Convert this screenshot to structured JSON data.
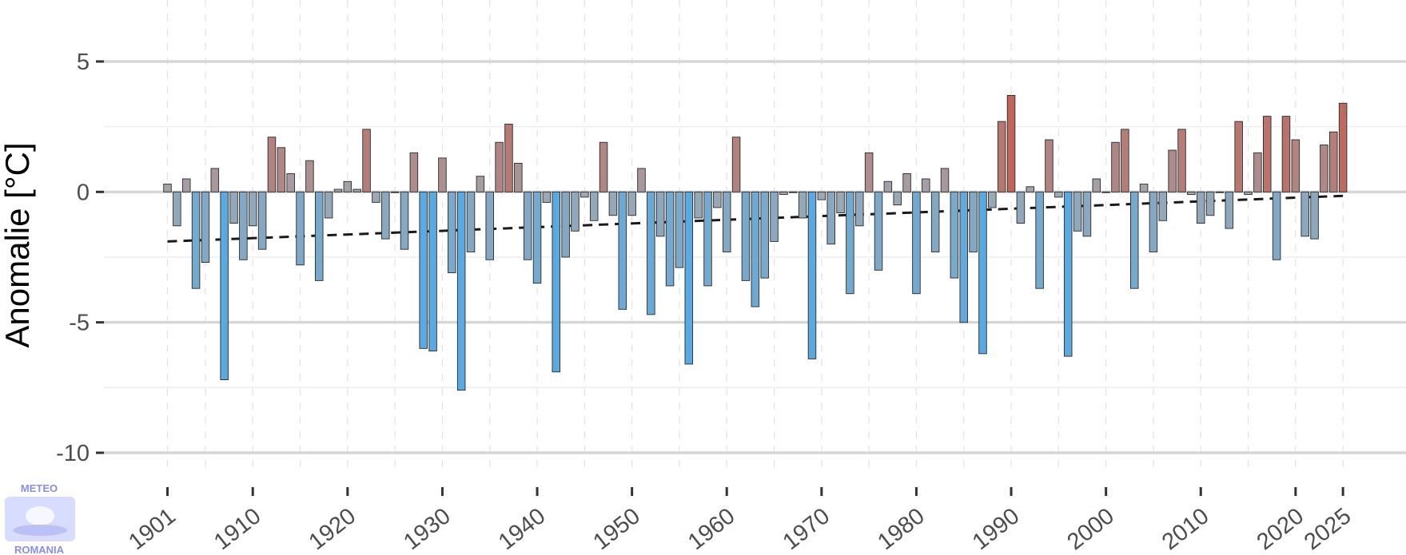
{
  "chart_data": {
    "type": "bar",
    "ylabel": "Anomalie [°C]",
    "xlabel": "",
    "xlim": [
      1898,
      2027
    ],
    "ylim": [
      -11.0,
      6.2
    ],
    "yticks": [
      5,
      0,
      -5,
      -10
    ],
    "ytick_labels": [
      "5",
      "0",
      "-5",
      "-10"
    ],
    "xticks": [
      1901,
      1910,
      1920,
      1930,
      1940,
      1950,
      1960,
      1970,
      1980,
      1990,
      2000,
      2010,
      2020,
      2025
    ],
    "xtick_labels": [
      "1901",
      "1910",
      "1920",
      "1930",
      "1940",
      "1950",
      "1960",
      "1970",
      "1980",
      "1990",
      "2000",
      "2010",
      "2020",
      "2025"
    ],
    "grid": "horizontal major lines, vertical dashed lines",
    "colors": {
      "warm": "#c0655a",
      "cold": "#5aa9e0",
      "neutral": "#a0a8b0"
    },
    "trend": {
      "style": "dashed",
      "start": [
        1901,
        -1.9
      ],
      "end": [
        2025,
        -0.15
      ]
    },
    "x": [
      1901,
      1902,
      1903,
      1904,
      1905,
      1906,
      1907,
      1908,
      1909,
      1910,
      1911,
      1912,
      1913,
      1914,
      1915,
      1916,
      1917,
      1918,
      1919,
      1920,
      1921,
      1922,
      1923,
      1924,
      1925,
      1926,
      1927,
      1928,
      1929,
      1930,
      1931,
      1932,
      1933,
      1934,
      1935,
      1936,
      1937,
      1938,
      1939,
      1940,
      1941,
      1942,
      1943,
      1944,
      1945,
      1946,
      1947,
      1948,
      1949,
      1950,
      1951,
      1952,
      1953,
      1954,
      1955,
      1956,
      1957,
      1958,
      1959,
      1960,
      1961,
      1962,
      1963,
      1964,
      1965,
      1966,
      1967,
      1968,
      1969,
      1970,
      1971,
      1972,
      1973,
      1974,
      1975,
      1976,
      1977,
      1978,
      1979,
      1980,
      1981,
      1982,
      1983,
      1984,
      1985,
      1986,
      1987,
      1988,
      1989,
      1990,
      1991,
      1992,
      1993,
      1994,
      1995,
      1996,
      1997,
      1998,
      1999,
      2000,
      2001,
      2002,
      2003,
      2004,
      2005,
      2006,
      2007,
      2008,
      2009,
      2010,
      2011,
      2012,
      2013,
      2014,
      2015,
      2016,
      2017,
      2018,
      2019,
      2020,
      2021,
      2022,
      2023,
      2024,
      2025
    ],
    "values": [
      0.3,
      -1.3,
      0.5,
      -3.7,
      -2.7,
      0.9,
      -7.2,
      -1.2,
      -2.6,
      -1.3,
      -2.2,
      2.1,
      1.7,
      0.7,
      -2.8,
      1.2,
      -3.4,
      -1.0,
      0.1,
      0.4,
      0.1,
      2.4,
      -0.4,
      -1.8,
      0.0,
      -2.2,
      1.5,
      -6.0,
      -6.1,
      1.3,
      -3.1,
      -7.6,
      -2.3,
      0.6,
      -2.6,
      1.9,
      2.6,
      1.1,
      -2.6,
      -3.5,
      -0.4,
      -6.9,
      -2.5,
      -1.5,
      -0.2,
      -1.1,
      1.9,
      -0.9,
      -4.5,
      -0.9,
      0.9,
      -4.7,
      -1.7,
      -3.6,
      -2.9,
      -6.6,
      -1.0,
      -3.6,
      -0.6,
      -2.3,
      2.1,
      -3.4,
      -4.4,
      -3.3,
      -1.9,
      -0.1,
      0.0,
      -1.0,
      -6.4,
      -0.3,
      -2.0,
      -0.8,
      -3.9,
      -1.3,
      1.5,
      -3.0,
      0.4,
      -0.5,
      0.7,
      -3.9,
      0.5,
      -2.3,
      0.9,
      -3.3,
      -5.0,
      -2.3,
      -6.2,
      -0.6,
      2.7,
      3.7,
      -1.2,
      0.2,
      -3.7,
      2.0,
      -0.2,
      -6.3,
      -1.5,
      -1.7,
      0.5,
      0.0,
      1.9,
      2.4,
      -3.7,
      0.3,
      -2.3,
      -1.1,
      1.6,
      2.4,
      -0.1,
      -1.2,
      -0.9,
      0.0,
      -1.4,
      2.7,
      -0.1,
      1.5,
      2.9,
      -2.6,
      2.9,
      2.0,
      -1.7,
      -1.8,
      1.8,
      2.3,
      3.4
    ]
  },
  "logo": {
    "top": "METEO",
    "bottom": "ROMANIA"
  }
}
